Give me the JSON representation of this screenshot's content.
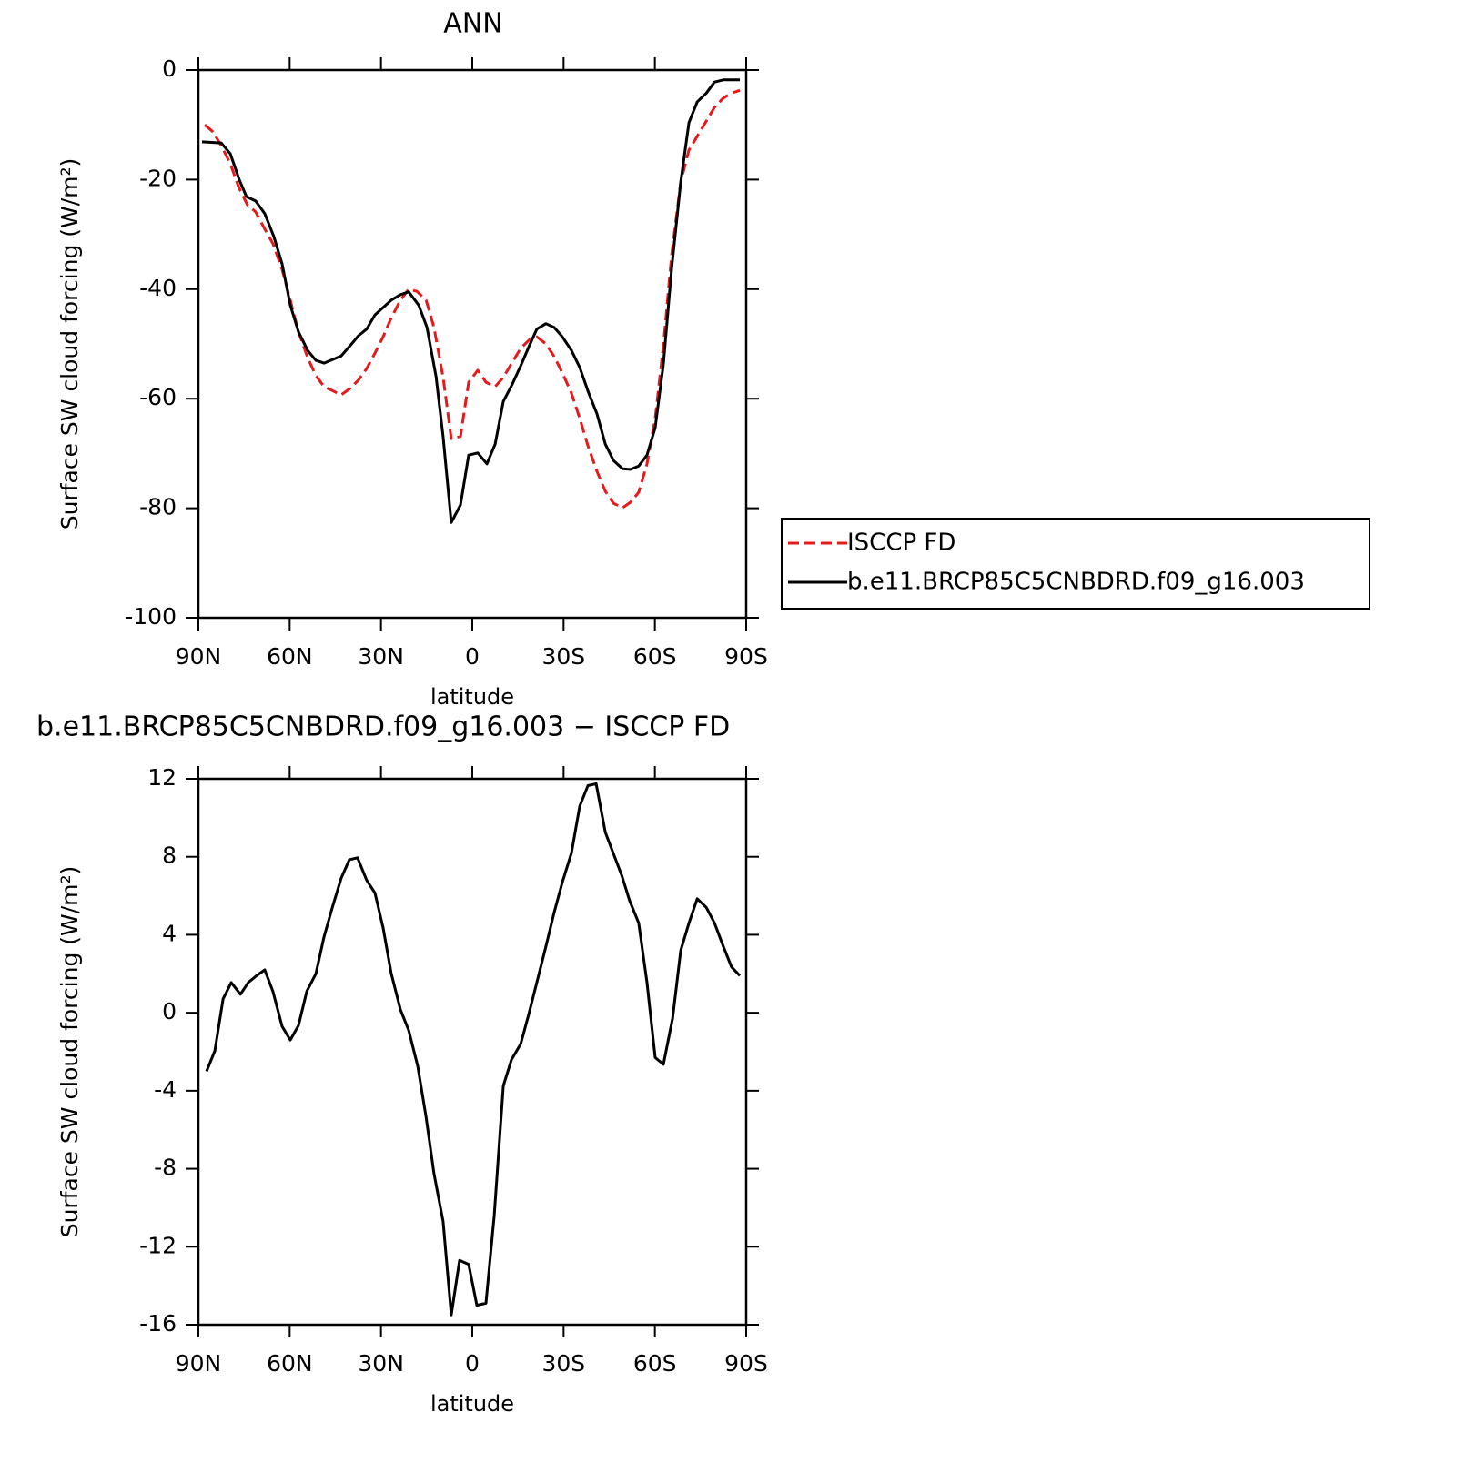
{
  "chart_data": [
    {
      "type": "line",
      "title": "ANN",
      "x_label": "latitude",
      "y_label": "Surface SW cloud forcing (W/m²)",
      "xlim": [
        90,
        -90
      ],
      "ylim": [
        -100,
        0
      ],
      "xticks": [
        {
          "value": 90,
          "label": "90N"
        },
        {
          "value": 60,
          "label": "60N"
        },
        {
          "value": 30,
          "label": "30N"
        },
        0,
        {
          "value": -30,
          "label": "30S"
        },
        {
          "value": -60,
          "label": "60S"
        },
        {
          "value": -90,
          "label": "90S"
        }
      ],
      "yticks": [
        -100,
        -80,
        -60,
        -40,
        -20,
        0
      ],
      "legend": "right",
      "series": [
        {
          "name": "ISCCP FD",
          "color": "#e41a1c",
          "linestyle": "dashed",
          "x": [
            87.9,
            85.2,
            82.5,
            79.5,
            76.8,
            73.9,
            71.2,
            68.5,
            65.5,
            62.5,
            59.8,
            57.1,
            54.1,
            51.4,
            48.7,
            45.7,
            43.1,
            40.1,
            37.4,
            34.7,
            32.0,
            29.3,
            26.6,
            23.6,
            20.9,
            18.2,
            15.2,
            12.6,
            9.6,
            6.9,
            3.9,
            1.2,
            -1.8,
            -4.5,
            -7.5,
            -10.2,
            -13.2,
            -15.9,
            -18.6,
            -21.2,
            -24.2,
            -26.9,
            -29.6,
            -32.6,
            -35.3,
            -38.0,
            -41.0,
            -43.7,
            -46.4,
            -49.4,
            -52.0,
            -54.7,
            -57.4,
            -60.1,
            -62.8,
            -65.5,
            -68.5,
            -71.2,
            -73.9,
            -76.9,
            -79.6,
            -82.5,
            -85.2,
            -87.9
          ],
          "values": [
            -10.0,
            -11.3,
            -13.8,
            -17.1,
            -21.3,
            -24.6,
            -25.9,
            -28.7,
            -31.7,
            -36.4,
            -42.0,
            -47.8,
            -52.5,
            -55.8,
            -57.8,
            -58.6,
            -59.3,
            -58.1,
            -56.6,
            -54.5,
            -51.7,
            -48.7,
            -45.2,
            -42.0,
            -40.0,
            -40.4,
            -42.0,
            -47.0,
            -56.1,
            -67.3,
            -66.9,
            -57.0,
            -54.8,
            -57.0,
            -57.8,
            -56.1,
            -53.3,
            -50.8,
            -49.3,
            -48.7,
            -50.0,
            -52.3,
            -55.3,
            -59.0,
            -63.6,
            -68.6,
            -73.3,
            -76.9,
            -79.1,
            -79.9,
            -78.9,
            -77.1,
            -71.9,
            -63.6,
            -50.3,
            -33.7,
            -20.4,
            -14.6,
            -12.1,
            -9.3,
            -6.8,
            -5.1,
            -4.2,
            -3.7
          ]
        },
        {
          "name": "b.e11.BRCP85C5CNBDRD.f09_g16.003",
          "color": "#000000",
          "linestyle": "solid",
          "x": [
            88.8,
            82.5,
            79.5,
            76.5,
            74.2,
            71.2,
            68.2,
            65.2,
            62.5,
            59.8,
            57.1,
            54.1,
            51.4,
            48.7,
            43.1,
            40.1,
            37.4,
            34.7,
            32.0,
            26.6,
            23.6,
            20.9,
            17.6,
            14.9,
            11.9,
            9.6,
            6.9,
            3.9,
            1.2,
            -1.8,
            -4.8,
            -7.5,
            -10.2,
            -13.2,
            -15.9,
            -18.6,
            -21.2,
            -24.2,
            -26.9,
            -29.6,
            -32.6,
            -35.3,
            -38.0,
            -41.0,
            -43.7,
            -46.4,
            -49.4,
            -52.0,
            -54.7,
            -57.4,
            -60.1,
            -62.8,
            -65.5,
            -68.5,
            -71.2,
            -73.9,
            -76.9,
            -79.6,
            -82.5,
            -87.9
          ],
          "values": [
            -13.1,
            -13.3,
            -15.3,
            -20.1,
            -23.1,
            -23.9,
            -26.2,
            -30.4,
            -35.4,
            -42.9,
            -47.8,
            -51.2,
            -53.0,
            -53.5,
            -52.2,
            -50.3,
            -48.5,
            -47.3,
            -44.7,
            -42.0,
            -41.0,
            -40.5,
            -42.9,
            -47.0,
            -56.0,
            -66.9,
            -82.6,
            -79.4,
            -70.3,
            -69.9,
            -71.9,
            -68.3,
            -60.5,
            -57.3,
            -54.0,
            -50.5,
            -47.3,
            -46.3,
            -47.0,
            -48.7,
            -51.2,
            -54.3,
            -58.6,
            -62.8,
            -68.3,
            -71.3,
            -72.8,
            -72.9,
            -72.3,
            -70.3,
            -65.3,
            -53.7,
            -36.2,
            -20.4,
            -9.6,
            -5.8,
            -4.2,
            -2.2,
            -1.8,
            -1.8
          ]
        }
      ]
    },
    {
      "type": "line",
      "title": "b.e11.BRCP85C5CNBDRD.f09_g16.003 − ISCCP FD",
      "x_label": "latitude",
      "y_label": "Surface SW cloud forcing (W/m²)",
      "xlim": [
        90,
        -90
      ],
      "ylim": [
        -16,
        12
      ],
      "xticks": [
        {
          "value": 90,
          "label": "90N"
        },
        {
          "value": 60,
          "label": "60N"
        },
        {
          "value": 30,
          "label": "30N"
        },
        0,
        {
          "value": -30,
          "label": "30S"
        },
        {
          "value": -60,
          "label": "60S"
        },
        {
          "value": -90,
          "label": "90S"
        }
      ],
      "yticks": [
        -16,
        -12,
        -8,
        -4,
        0,
        4,
        8,
        12
      ],
      "series": [
        {
          "color": "#000000",
          "linestyle": "solid",
          "x": [
            87.3,
            84.6,
            81.9,
            79.2,
            76.2,
            73.6,
            70.9,
            68.2,
            65.5,
            62.5,
            59.8,
            57.1,
            54.4,
            51.4,
            48.7,
            46.0,
            43.1,
            40.4,
            37.7,
            34.7,
            32.0,
            29.3,
            26.6,
            23.6,
            20.9,
            17.9,
            15.2,
            12.6,
            9.6,
            6.9,
            4.2,
            1.2,
            -1.5,
            -4.5,
            -7.2,
            -10.2,
            -12.9,
            -15.9,
            -18.6,
            -21.2,
            -24.2,
            -26.9,
            -29.6,
            -32.6,
            -35.3,
            -38.0,
            -40.7,
            -43.7,
            -46.4,
            -49.1,
            -51.7,
            -54.7,
            -57.4,
            -60.1,
            -62.8,
            -65.8,
            -68.5,
            -71.2,
            -73.9,
            -76.9,
            -79.6,
            -82.5,
            -85.2,
            -87.9
          ],
          "values": [
            -3.0,
            -1.95,
            0.7,
            1.55,
            0.95,
            1.55,
            1.9,
            2.2,
            1.1,
            -0.7,
            -1.4,
            -0.65,
            1.1,
            2.0,
            3.9,
            5.4,
            6.9,
            7.85,
            7.95,
            6.8,
            6.15,
            4.35,
            2.0,
            0.15,
            -0.9,
            -2.75,
            -5.35,
            -8.25,
            -10.7,
            -15.5,
            -12.7,
            -12.9,
            -15.0,
            -14.9,
            -10.4,
            -3.75,
            -2.4,
            -1.6,
            -0.05,
            1.55,
            3.4,
            5.15,
            6.7,
            8.2,
            10.6,
            11.65,
            11.75,
            9.25,
            8.15,
            7.05,
            5.75,
            4.6,
            1.55,
            -2.3,
            -2.65,
            -0.3,
            3.2,
            4.6,
            5.85,
            5.4,
            4.6,
            3.4,
            2.35,
            1.9
          ]
        }
      ]
    }
  ]
}
